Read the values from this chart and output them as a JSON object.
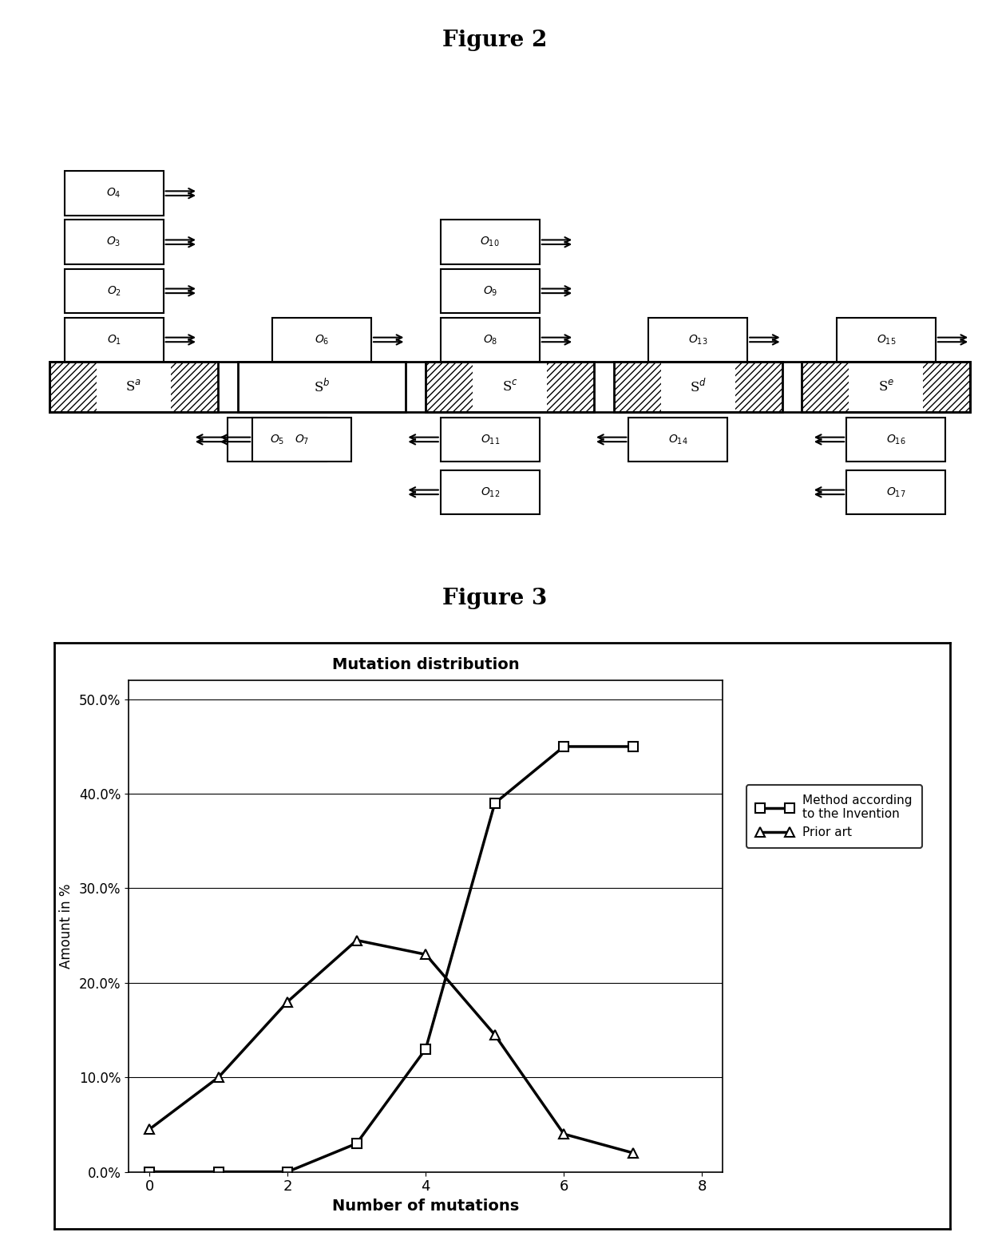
{
  "fig2_title": "Figure 2",
  "fig3_title": "Figure 3",
  "chart_title": "Mutation distribution",
  "xlabel": "Number of mutations",
  "ylabel": "Amount in %",
  "method_x": [
    0,
    1,
    2,
    3,
    4,
    5,
    6,
    7
  ],
  "method_y": [
    0.0,
    0.0,
    0.0,
    0.03,
    0.13,
    0.39,
    0.45,
    0.45
  ],
  "prior_x": [
    0,
    1,
    2,
    3,
    4,
    5,
    6,
    7
  ],
  "prior_y": [
    0.045,
    0.1,
    0.18,
    0.245,
    0.23,
    0.145,
    0.04,
    0.02
  ],
  "yticks": [
    0.0,
    0.1,
    0.2,
    0.3,
    0.4,
    0.5
  ],
  "ytick_labels": [
    "0.0%",
    "10.0%",
    "20.0%",
    "30.0%",
    "40.0%",
    "50.0%"
  ],
  "xticks": [
    0,
    2,
    4,
    6,
    8
  ],
  "legend_method": "Method according\nto the Invention",
  "legend_prior": "Prior art",
  "bg_color": "#ffffff"
}
